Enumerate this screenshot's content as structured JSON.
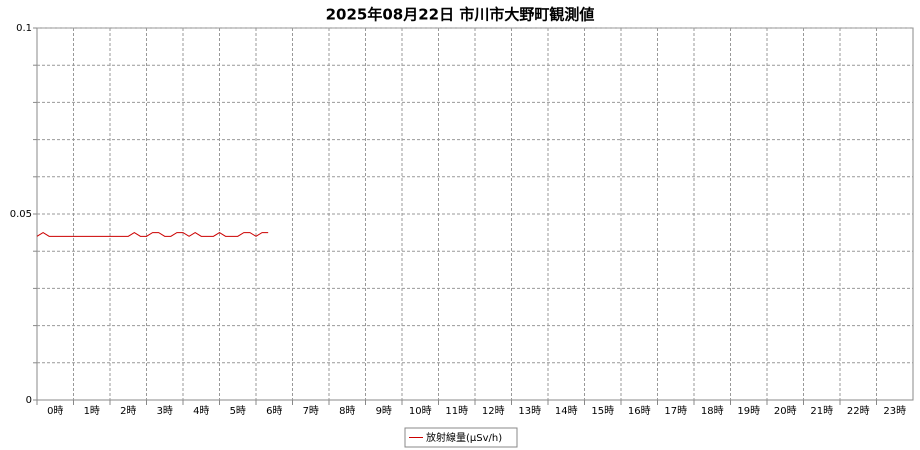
{
  "chart_data": {
    "type": "line",
    "title": "2025年08月22日 市川市大野町観測値",
    "x": [
      0,
      10,
      20,
      30,
      40,
      50,
      60,
      70,
      80,
      90,
      100,
      110,
      120,
      130,
      140,
      150,
      160,
      170,
      180,
      190,
      200,
      210,
      220,
      230,
      240,
      250,
      260,
      270,
      280,
      290,
      300,
      310,
      320,
      330,
      340,
      350,
      360,
      370,
      380
    ],
    "series": [
      {
        "name": "放射線量(μSv/h)",
        "color": "#cc0000",
        "values": [
          0.044,
          0.045,
          0.044,
          0.044,
          0.044,
          0.044,
          0.044,
          0.044,
          0.044,
          0.044,
          0.044,
          0.044,
          0.044,
          0.044,
          0.044,
          0.044,
          0.045,
          0.044,
          0.044,
          0.045,
          0.045,
          0.044,
          0.044,
          0.045,
          0.045,
          0.044,
          0.045,
          0.044,
          0.044,
          0.044,
          0.045,
          0.044,
          0.044,
          0.044,
          0.045,
          0.045,
          0.044,
          0.045,
          0.045
        ]
      }
    ],
    "xlim": [
      0,
      1440
    ],
    "xticks": [
      {
        "value": 0,
        "label": "0時"
      },
      {
        "value": 60,
        "label": "1時"
      },
      {
        "value": 120,
        "label": "2時"
      },
      {
        "value": 180,
        "label": "3時"
      },
      {
        "value": 240,
        "label": "4時"
      },
      {
        "value": 300,
        "label": "5時"
      },
      {
        "value": 360,
        "label": "6時"
      },
      {
        "value": 420,
        "label": "7時"
      },
      {
        "value": 480,
        "label": "8時"
      },
      {
        "value": 540,
        "label": "9時"
      },
      {
        "value": 600,
        "label": "10時"
      },
      {
        "value": 660,
        "label": "11時"
      },
      {
        "value": 720,
        "label": "12時"
      },
      {
        "value": 780,
        "label": "13時"
      },
      {
        "value": 840,
        "label": "14時"
      },
      {
        "value": 900,
        "label": "15時"
      },
      {
        "value": 960,
        "label": "16時"
      },
      {
        "value": 1020,
        "label": "17時"
      },
      {
        "value": 1080,
        "label": "18時"
      },
      {
        "value": 1140,
        "label": "19時"
      },
      {
        "value": 1200,
        "label": "20時"
      },
      {
        "value": 1260,
        "label": "21時"
      },
      {
        "value": 1320,
        "label": "22時"
      },
      {
        "value": 1380,
        "label": "23時"
      }
    ],
    "ylim": [
      0,
      0.1
    ],
    "yticks": [
      0,
      0.05,
      0.1
    ],
    "ygrid": [
      0.01,
      0.02,
      0.03,
      0.04,
      0.05,
      0.06,
      0.07,
      0.08,
      0.09,
      0.1
    ],
    "grid": true,
    "legend": "bottom"
  }
}
